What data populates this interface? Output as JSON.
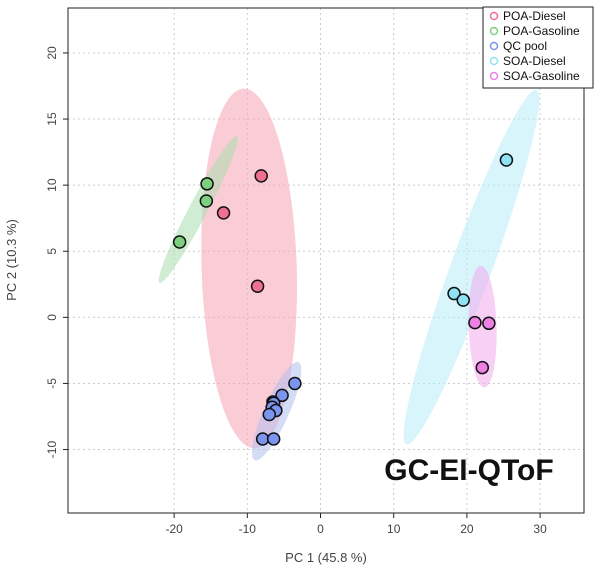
{
  "chart_data": {
    "type": "scatter",
    "title": "",
    "xlabel": "PC 1 (45.8 %)",
    "ylabel": "PC 2 (10.3 %)",
    "xlim": [
      -34.5,
      36
    ],
    "ylim": [
      -14.8,
      23.4
    ],
    "xticks": [
      -20,
      -10,
      0,
      10,
      20,
      30
    ],
    "yticks": [
      -10,
      -5,
      0,
      5,
      10,
      15,
      20
    ],
    "grid": true,
    "legend_position": "top-right",
    "annotation": "GC-EI-QToF",
    "series": [
      {
        "name": "POA-Diesel",
        "color": "#f0708f",
        "fill": "#f5a3b5",
        "points": [
          [
            -8.1,
            10.7
          ],
          [
            -13.25,
            7.9
          ],
          [
            -8.6,
            2.35
          ]
        ],
        "ellipse": {
          "p1": [
            -10.5,
            17.3
          ],
          "p2": [
            -9.0,
            -9.9
          ],
          "minor": 6.5
        }
      },
      {
        "name": "POA-Gasoline",
        "color": "#7ccf7c",
        "fill": "#a9dfae",
        "points": [
          [
            -15.5,
            10.1
          ],
          [
            -15.6,
            8.8
          ],
          [
            -19.25,
            5.7
          ]
        ],
        "ellipse": {
          "p1": [
            -22.0,
            2.6
          ],
          "p2": [
            -11.4,
            13.7
          ],
          "minor": 1.25
        }
      },
      {
        "name": "QC pool",
        "color": "#7b94ee",
        "fill": "#b3c0ee",
        "points": [
          [
            -3.5,
            -5.0
          ],
          [
            -5.25,
            -5.9
          ],
          [
            -6.5,
            -6.4
          ],
          [
            -6.4,
            -6.5
          ],
          [
            -6.6,
            -6.8
          ],
          [
            -6.1,
            -7.05
          ],
          [
            -7.0,
            -7.35
          ],
          [
            -7.9,
            -9.2
          ],
          [
            -6.4,
            -9.2
          ]
        ],
        "ellipse": {
          "p1": [
            -9.0,
            -10.8
          ],
          "p2": [
            -3.0,
            -3.4
          ],
          "minor": 1.7
        }
      },
      {
        "name": "SOA-Diesel",
        "color": "#8fe2f4",
        "fill": "#b6ecf8",
        "points": [
          [
            25.4,
            11.9
          ],
          [
            18.25,
            1.8
          ],
          [
            19.5,
            1.3
          ]
        ],
        "ellipse": {
          "p1": [
            11.75,
            -9.6
          ],
          "p2": [
            29.5,
            17.2
          ],
          "minor": 2.8
        }
      },
      {
        "name": "SOA-Gasoline",
        "color": "#ee80e4",
        "fill": "#f2aaee",
        "points": [
          [
            21.1,
            -0.4
          ],
          [
            23.0,
            -0.45
          ],
          [
            22.1,
            -3.8
          ]
        ],
        "ellipse": {
          "p1": [
            21.9,
            3.9
          ],
          "p2": [
            22.4,
            -5.3
          ],
          "minor": 1.9
        }
      }
    ]
  }
}
